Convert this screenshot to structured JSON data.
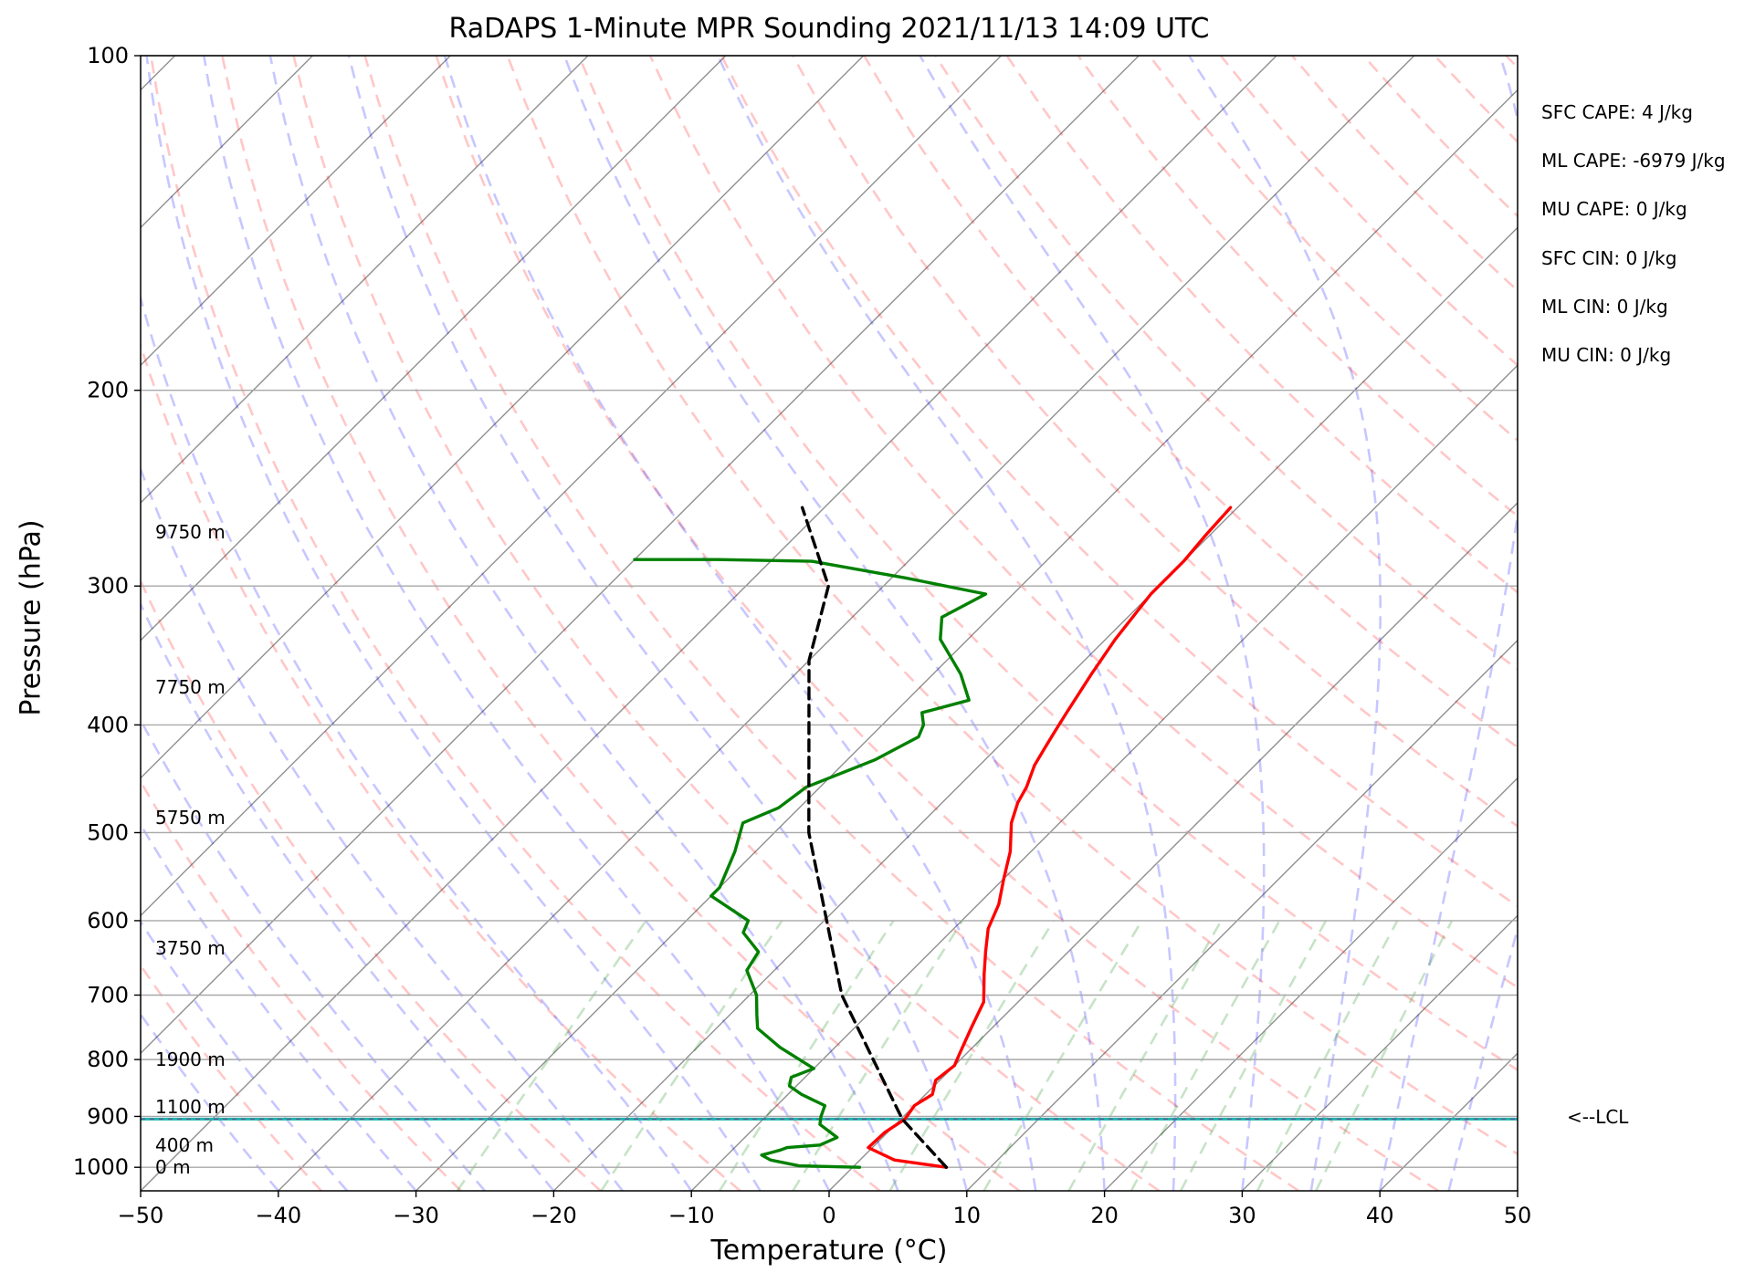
{
  "chart_data": {
    "type": "line",
    "title": "RaDAPS 1-Minute MPR Sounding 2021/11/13 14:09 UTC",
    "xlabel": "Temperature (°C)",
    "ylabel": "Pressure (hPa)",
    "xlim": [
      -50,
      50
    ],
    "ylim": [
      1050,
      100
    ],
    "y_scale": "log",
    "skew_t": true,
    "grid": true,
    "x_ticks": [
      "−50",
      "−40",
      "−30",
      "−20",
      "−10",
      "0",
      "10",
      "20",
      "30",
      "40",
      "50"
    ],
    "y_ticks": [
      "100",
      "200",
      "300",
      "400",
      "500",
      "600",
      "700",
      "800",
      "900",
      "1000"
    ],
    "series": [
      {
        "role": "temperature",
        "color": "#ff0000",
        "points": [
          [
            6.8,
            1000
          ],
          [
            2.5,
            985
          ],
          [
            -0.3,
            960
          ],
          [
            -0.2,
            930
          ],
          [
            0.3,
            905
          ],
          [
            0.0,
            880
          ],
          [
            0.5,
            860
          ],
          [
            -0.3,
            835
          ],
          [
            0.0,
            810
          ],
          [
            -0.5,
            790
          ],
          [
            -1.5,
            750
          ],
          [
            -2.5,
            710
          ],
          [
            -4.5,
            670
          ],
          [
            -6.0,
            640
          ],
          [
            -7.5,
            610
          ],
          [
            -8.5,
            580
          ],
          [
            -10.0,
            550
          ],
          [
            -11.5,
            520
          ],
          [
            -13.5,
            490
          ],
          [
            -14.5,
            470
          ],
          [
            -15.0,
            455
          ],
          [
            -16.0,
            435
          ],
          [
            -16.5,
            420
          ],
          [
            -17.0,
            405
          ],
          [
            -17.5,
            390
          ],
          [
            -18.5,
            360
          ],
          [
            -19.3,
            335
          ],
          [
            -20.0,
            305
          ],
          [
            -20.0,
            285
          ],
          [
            -20.3,
            270
          ],
          [
            -20.5,
            255
          ]
        ]
      },
      {
        "role": "dewpoint",
        "color": "#008000",
        "points": [
          [
            0.5,
            1000
          ],
          [
            -4.0,
            997
          ],
          [
            -6.5,
            985
          ],
          [
            -7.5,
            975
          ],
          [
            -7.0,
            970
          ],
          [
            -6.5,
            965
          ],
          [
            -6.2,
            960
          ],
          [
            -4.0,
            955
          ],
          [
            -3.3,
            940
          ],
          [
            -5.5,
            915
          ],
          [
            -6.0,
            900
          ],
          [
            -6.5,
            880
          ],
          [
            -9.0,
            860
          ],
          [
            -10.5,
            845
          ],
          [
            -11.0,
            830
          ],
          [
            -10.0,
            815
          ],
          [
            -14.0,
            780
          ],
          [
            -17.0,
            750
          ],
          [
            -18.0,
            730
          ],
          [
            -19.5,
            700
          ],
          [
            -22.0,
            665
          ],
          [
            -22.5,
            640
          ],
          [
            -25.0,
            615
          ],
          [
            -25.5,
            600
          ],
          [
            -30.0,
            570
          ],
          [
            -30.0,
            560
          ],
          [
            -31.5,
            520
          ],
          [
            -33.0,
            490
          ],
          [
            -31.5,
            475
          ],
          [
            -31.0,
            455
          ],
          [
            -28.0,
            430
          ],
          [
            -26.5,
            410
          ],
          [
            -27.0,
            400
          ],
          [
            -28.0,
            390
          ],
          [
            -25.5,
            380
          ],
          [
            -28.0,
            360
          ],
          [
            -32.0,
            335
          ],
          [
            -33.5,
            320
          ],
          [
            -32.0,
            305
          ],
          [
            -39.0,
            295
          ],
          [
            -47.0,
            285
          ],
          [
            -54.0,
            284
          ],
          [
            -60.0,
            284
          ]
        ]
      },
      {
        "role": "parcel-profile",
        "color": "#000000",
        "style": "dashed",
        "points": [
          [
            6.8,
            1000
          ],
          [
            0.1,
            905
          ],
          [
            -13.3,
            700
          ],
          [
            -27.5,
            500
          ],
          [
            -40.0,
            350
          ],
          [
            -44.0,
            300
          ],
          [
            -51.6,
            255
          ]
        ]
      }
    ],
    "lcl": {
      "pressure": 905,
      "label": "<--LCL",
      "color": "#20b2aa"
    },
    "height_labels": [
      {
        "text": "0 m",
        "pressure": 1000
      },
      {
        "text": "400 m",
        "pressure": 955
      },
      {
        "text": "1100 m",
        "pressure": 882
      },
      {
        "text": "1900 m",
        "pressure": 800
      },
      {
        "text": "3750 m",
        "pressure": 635
      },
      {
        "text": "5750 m",
        "pressure": 485
      },
      {
        "text": "7750 m",
        "pressure": 370
      },
      {
        "text": "9750 m",
        "pressure": 268
      }
    ],
    "annotations": [
      "SFC CAPE: 4 J/kg",
      "ML CAPE: -6979 J/kg",
      "MU CAPE: 0 J/kg",
      "SFC CIN: 0 J/kg",
      "ML CIN: 0 J/kg",
      "MU CIN: 0 J/kg"
    ],
    "reference_lines": {
      "isotherms_every_c": 10,
      "dry_adiabats": {
        "color": "#ff0000",
        "style": "dashed"
      },
      "moist_adiabats": {
        "color": "#0000ff",
        "style": "dashed"
      },
      "mixing_ratio_lines": {
        "color": "#008000",
        "style": "dashed"
      }
    }
  }
}
